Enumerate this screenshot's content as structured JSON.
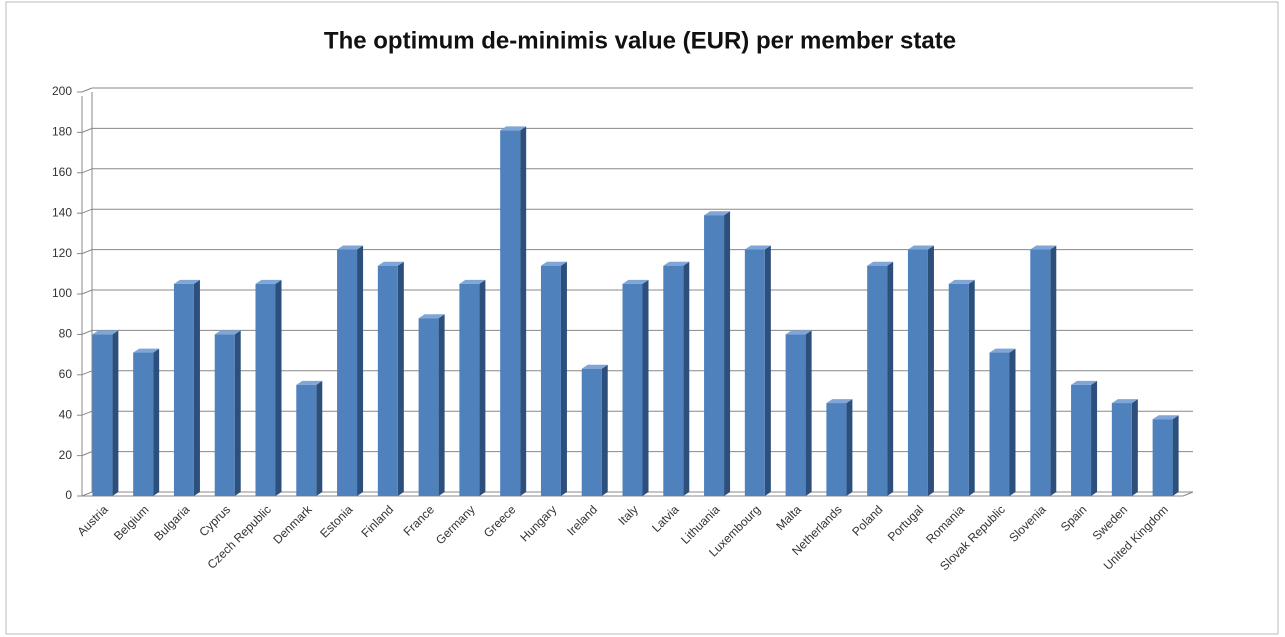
{
  "chart_data": {
    "type": "bar",
    "title": "The optimum de-minimis value (EUR) per member state",
    "categories": [
      "Austria",
      "Belgium",
      "Bulgaria",
      "Cyprus",
      "Czech Republic",
      "Denmark",
      "Estonia",
      "Finland",
      "France",
      "Germany",
      "Greece",
      "Hungary",
      "Ireland",
      "Italy",
      "Latvia",
      "Lithuania",
      "Luxembourg",
      "Malta",
      "Netherlands",
      "Poland",
      "Portugal",
      "Romania",
      "Slovak Republic",
      "Slovenia",
      "Spain",
      "Sweden",
      "United Kingdom"
    ],
    "values": [
      80,
      71,
      105,
      80,
      105,
      55,
      122,
      114,
      88,
      105,
      181,
      114,
      63,
      105,
      114,
      139,
      122,
      80,
      46,
      114,
      122,
      105,
      71,
      122,
      55,
      46,
      38
    ],
    "color": "#4f81bd",
    "ylim": [
      0,
      200
    ],
    "yticks": [
      0,
      20,
      40,
      60,
      80,
      100,
      120,
      140,
      160,
      180,
      200
    ],
    "grid": true
  }
}
